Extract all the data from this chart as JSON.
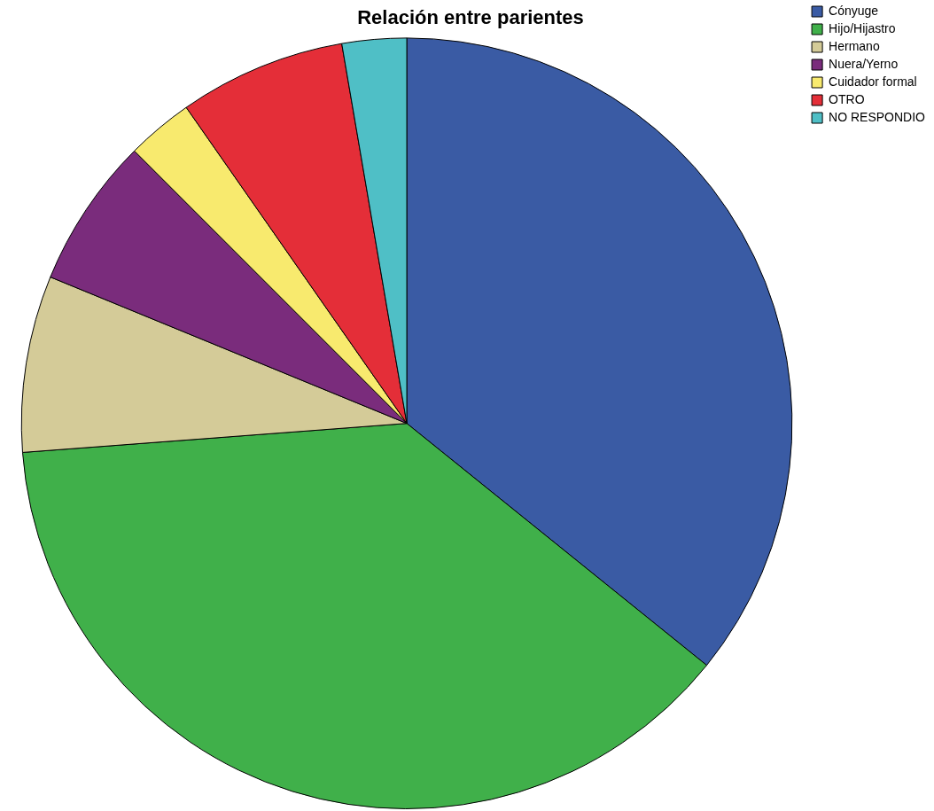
{
  "chart_data": {
    "type": "pie",
    "title": "Relación entre parientes",
    "categories": [
      "Cónyuge",
      "Hijo/Hijastro",
      "Hermano",
      "Nuera/Yerno",
      "Cuidador formal",
      "OTRO",
      "NO RESPONDIO"
    ],
    "values": [
      35.8,
      38.0,
      7.4,
      6.3,
      2.8,
      7.0,
      2.7
    ],
    "colors": [
      "#3a5ba4",
      "#40b04a",
      "#d4cb98",
      "#7a2c7c",
      "#f8ea6e",
      "#e42e38",
      "#4fbfc6"
    ],
    "legend": "top right"
  }
}
